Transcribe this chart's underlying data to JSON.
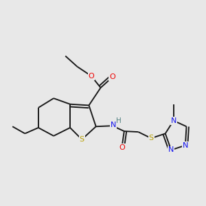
{
  "background_color": "#e8e8e8",
  "bond_color": "#1a1a1a",
  "atom_colors": {
    "S": "#b8a000",
    "O": "#ee0000",
    "N": "#1010ee",
    "H": "#508080",
    "C": "#1a1a1a"
  },
  "figsize": [
    3.0,
    3.0
  ],
  "dpi": 100
}
